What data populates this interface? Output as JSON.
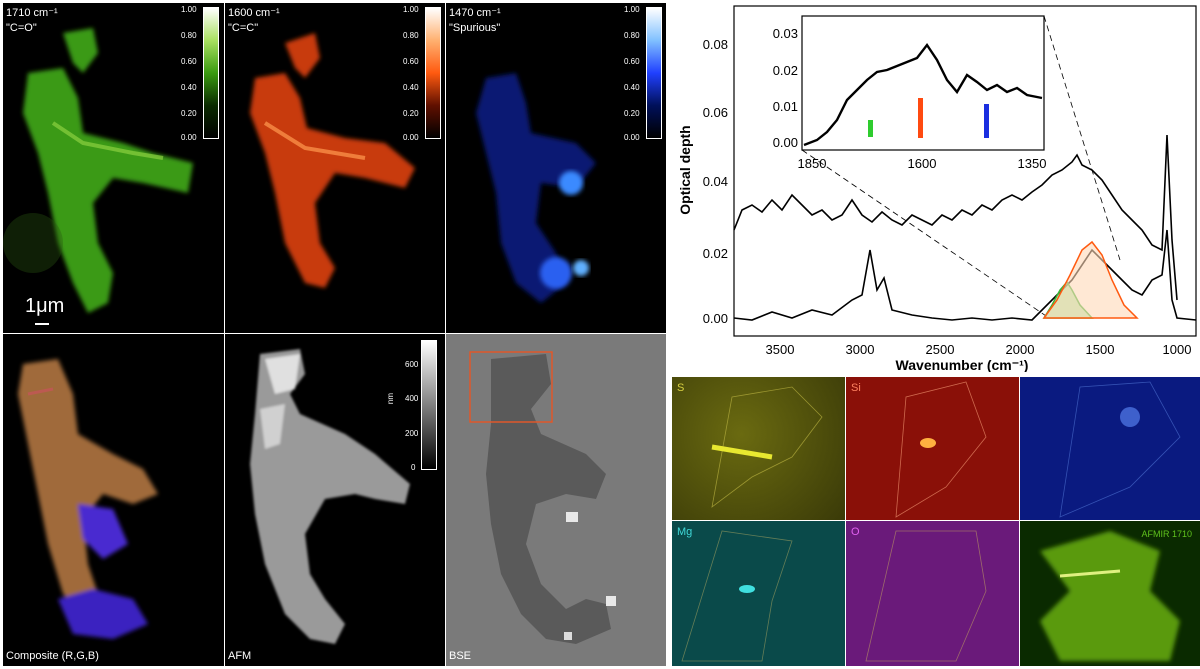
{
  "panels": {
    "p1710": {
      "label_line1": "1710 cm⁻¹",
      "label_line2": "\"C=O\"",
      "ticks": [
        "1.00",
        "0.80",
        "0.60",
        "0.40",
        "0.20",
        "0.00"
      ]
    },
    "p1600": {
      "label_line1": "1600 cm⁻¹",
      "label_line2": "\"C=C\"",
      "ticks": [
        "1.00",
        "0.80",
        "0.60",
        "0.40",
        "0.20",
        "0.00"
      ]
    },
    "p1470": {
      "label_line1": "1470 cm⁻¹",
      "label_line2": "\"Spurious\"",
      "ticks": [
        "1.00",
        "0.80",
        "0.60",
        "0.40",
        "0.20",
        "0.00"
      ]
    },
    "composite": {
      "label": "Composite (R,G,B)"
    },
    "afm": {
      "label": "AFM",
      "unit": "nm",
      "ticks": [
        "600",
        "400",
        "200",
        "0"
      ]
    },
    "bse": {
      "label": "BSE"
    },
    "scalebar": "1μm"
  },
  "colors": {
    "green": "#5fc21c",
    "orange": "#ff5a10",
    "blue": "#2040ff",
    "box": "#e0582a"
  },
  "spectrum": {
    "ylabel": "Optical depth",
    "xlabel": "Wavenumber (cm⁻¹)",
    "xticks": [
      "3500",
      "3000",
      "2500",
      "2000",
      "1500",
      "1000"
    ],
    "yticks": [
      "0.00",
      "0.02",
      "0.04",
      "0.06",
      "0.08"
    ],
    "inset_xticks": [
      "1850",
      "1600",
      "1350"
    ],
    "inset_yticks": [
      "0.00",
      "0.01",
      "0.02",
      "0.03"
    ]
  },
  "maps": {
    "s": "S",
    "si": "Si",
    "mg": "Mg",
    "o": "O",
    "afmir": "AFMIR 1710"
  }
}
